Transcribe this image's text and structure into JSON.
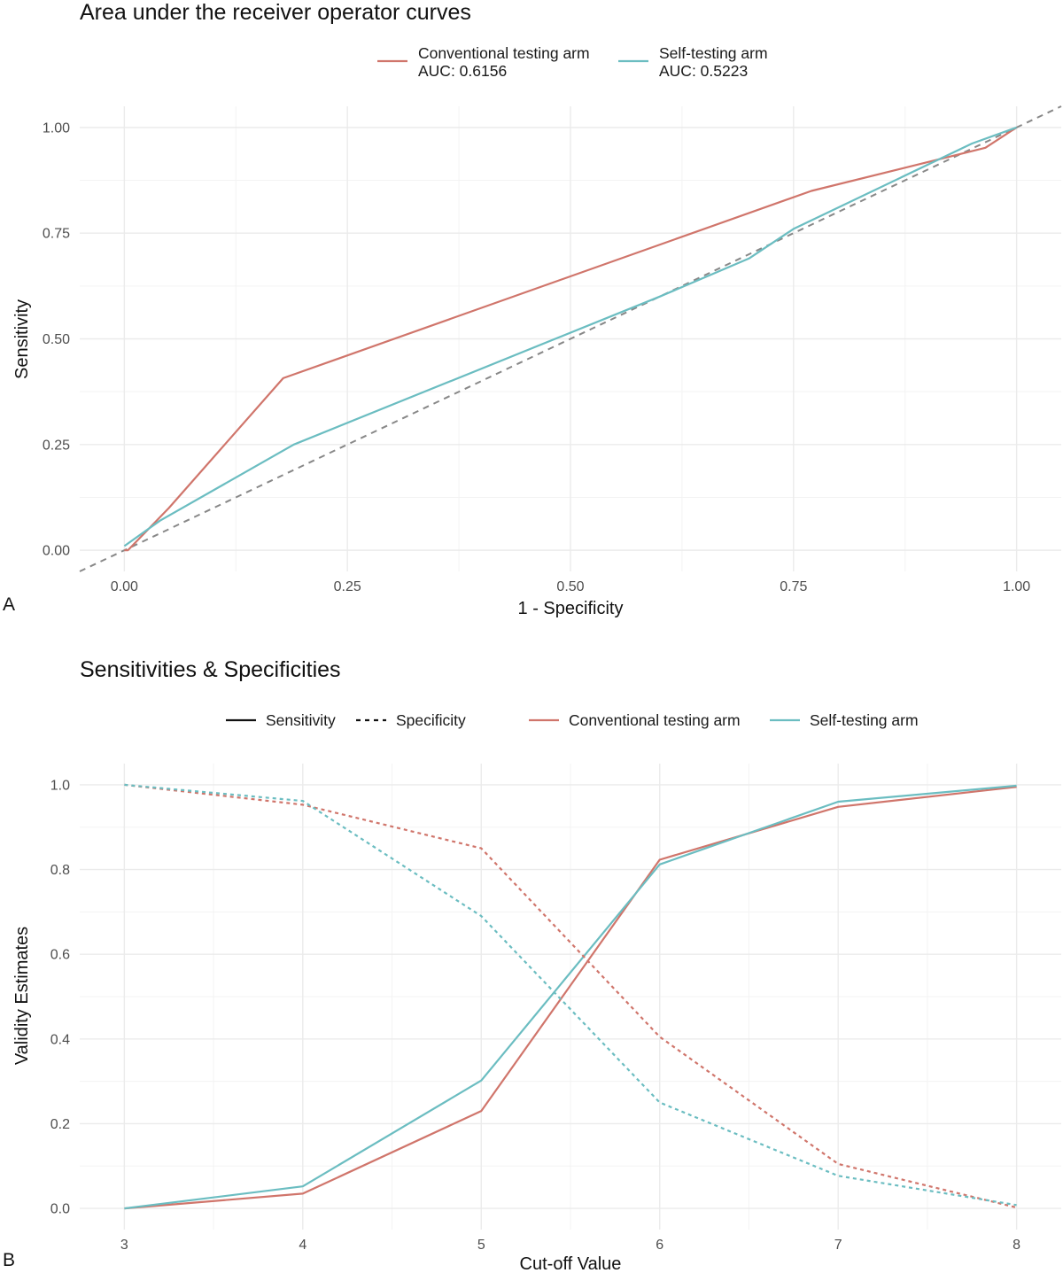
{
  "colors": {
    "conventional": "#D0756B",
    "self": "#6BBDC1",
    "reference": "#888888"
  },
  "chart_data": [
    {
      "type": "line",
      "panel_letter": "A",
      "title": "Area under the receiver operator curves",
      "xlabel": "1 - Specificity",
      "ylabel": "Sensitivity",
      "xlim": [
        -0.05,
        1.05
      ],
      "ylim": [
        -0.05,
        1.05
      ],
      "xticks": [
        0,
        0.25,
        0.5,
        0.75,
        1
      ],
      "xtick_labels": [
        "0.00",
        "0.25",
        "0.50",
        "0.75",
        "1.00"
      ],
      "yticks": [
        0,
        0.25,
        0.5,
        0.75,
        1
      ],
      "ytick_labels": [
        "0.00",
        "0.25",
        "0.50",
        "0.75",
        "1.00"
      ],
      "grid": true,
      "legend_position": "top",
      "reference_line": {
        "style": "dashed",
        "slope": 1,
        "intercept": 0
      },
      "series": [
        {
          "name": "Conventional testing arm",
          "name_line2": "AUC: 0.6156",
          "color": "#D0756B",
          "x": [
            0,
            0.004,
            0.05,
            0.178,
            0.77,
            0.965,
            1.0
          ],
          "y": [
            0,
            0.0,
            0.1,
            0.407,
            0.85,
            0.952,
            1.0
          ]
        },
        {
          "name": "Self-testing arm",
          "name_line2": "AUC: 0.5223",
          "color": "#6BBDC1",
          "x": [
            0,
            0.04,
            0.19,
            0.6,
            0.7,
            0.75,
            0.95,
            1.0
          ],
          "y": [
            0.01,
            0.07,
            0.25,
            0.6,
            0.69,
            0.76,
            0.962,
            1.0
          ]
        }
      ]
    },
    {
      "type": "line",
      "panel_letter": "B",
      "title": "Sensitivities & Specificities",
      "xlabel": "Cut-off Value",
      "ylabel": "Validity Estimates",
      "xlim": [
        2.75,
        8.25
      ],
      "ylim": [
        -0.05,
        1.05
      ],
      "xticks": [
        3,
        4,
        5,
        6,
        7,
        8
      ],
      "xtick_labels": [
        "3",
        "4",
        "5",
        "6",
        "7",
        "8"
      ],
      "yticks": [
        0,
        0.2,
        0.4,
        0.6,
        0.8,
        1.0
      ],
      "ytick_labels": [
        "0.0",
        "0.2",
        "0.4",
        "0.6",
        "0.8",
        "1.0"
      ],
      "grid": true,
      "legend_position": "top",
      "legend_linetype": [
        {
          "name": "Sensitivity",
          "style": "solid"
        },
        {
          "name": "Specificity",
          "style": "dashed"
        }
      ],
      "legend_color": [
        {
          "name": "Conventional testing arm",
          "color": "#D0756B"
        },
        {
          "name": "Self-testing arm",
          "color": "#6BBDC1"
        }
      ],
      "x": [
        3,
        4,
        5,
        6,
        7,
        8
      ],
      "series": [
        {
          "name": "Conventional testing arm - Sensitivity",
          "color": "#D0756B",
          "style": "solid",
          "values": [
            0.0,
            0.035,
            0.23,
            0.823,
            0.948,
            0.995
          ]
        },
        {
          "name": "Self-testing arm - Sensitivity",
          "color": "#6BBDC1",
          "style": "solid",
          "values": [
            0.0,
            0.052,
            0.302,
            0.812,
            0.96,
            0.998
          ]
        },
        {
          "name": "Conventional testing arm - Specificity",
          "color": "#D0756B",
          "style": "dashed",
          "values": [
            1.0,
            0.953,
            0.85,
            0.405,
            0.105,
            0.002
          ]
        },
        {
          "name": "Self-testing arm - Specificity",
          "color": "#6BBDC1",
          "style": "dashed",
          "values": [
            1.0,
            0.962,
            0.69,
            0.25,
            0.077,
            0.008
          ]
        }
      ]
    }
  ]
}
